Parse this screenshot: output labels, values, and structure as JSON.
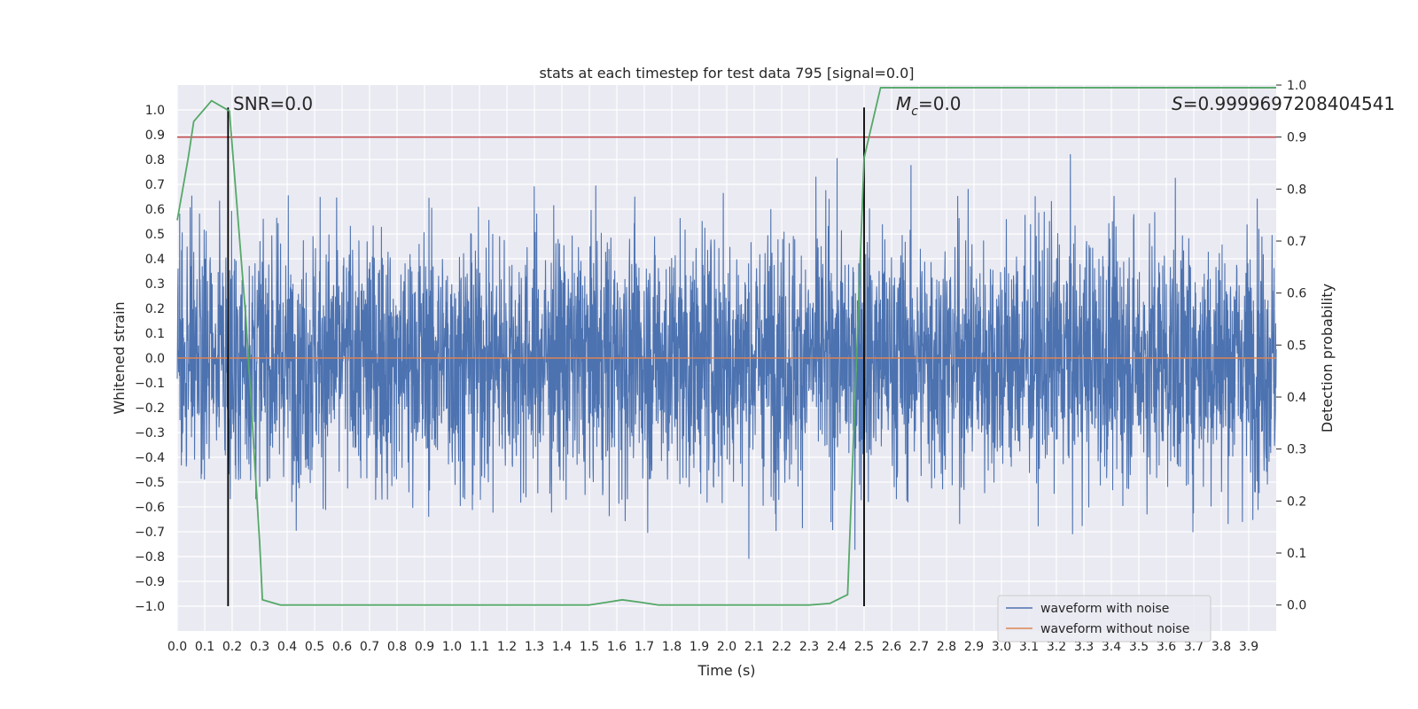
{
  "chart_data": {
    "type": "line",
    "title": "stats at each timestep for test data 795 [signal=0.0]",
    "xlabel": "Time (s)",
    "ylabel": "Whitened strain",
    "y2label": "Detection probability",
    "xlim": [
      0.0,
      4.0
    ],
    "ylim": [
      -1.1,
      1.1
    ],
    "y2lim": [
      -0.05,
      1.0
    ],
    "xticks": [
      "0.0",
      "0.1",
      "0.2",
      "0.3",
      "0.4",
      "0.5",
      "0.6",
      "0.7",
      "0.8",
      "0.9",
      "1.0",
      "1.1",
      "1.2",
      "1.3",
      "1.4",
      "1.5",
      "1.6",
      "1.7",
      "1.8",
      "1.9",
      "2.0",
      "2.1",
      "2.2",
      "2.3",
      "2.4",
      "2.5",
      "2.6",
      "2.7",
      "2.8",
      "2.9",
      "3.0",
      "3.1",
      "3.2",
      "3.3",
      "3.4",
      "3.5",
      "3.6",
      "3.7",
      "3.8",
      "3.9"
    ],
    "yticks": [
      "1.0",
      "0.9",
      "0.8",
      "0.7",
      "0.6",
      "0.5",
      "0.4",
      "0.3",
      "0.2",
      "0.1",
      "0.0",
      "−0.1",
      "−0.2",
      "−0.3",
      "−0.4",
      "−0.5",
      "−0.6",
      "−0.7",
      "−0.8",
      "−0.9",
      "−1.0"
    ],
    "y2ticks": [
      "1.0",
      "0.9",
      "0.8",
      "0.7",
      "0.6",
      "0.5",
      "0.4",
      "0.3",
      "0.2",
      "0.1",
      "0.0"
    ],
    "grid": true,
    "legend_position": "bottom-right",
    "series": [
      {
        "name": "waveform with noise",
        "color": "#4c72b0",
        "kind": "noise",
        "amplitude": 0.3,
        "samples": 4000
      },
      {
        "name": "waveform without noise",
        "color": "#dd8452",
        "values": [
          0.0,
          0.0
        ]
      }
    ],
    "probability": {
      "color": "#55a868",
      "x": [
        0.0,
        0.04,
        0.06,
        0.125,
        0.19,
        0.25,
        0.3,
        0.31,
        0.375,
        0.5,
        1.0,
        1.5,
        1.56,
        1.62,
        1.69,
        1.75,
        2.0,
        2.3,
        2.375,
        2.44,
        2.5,
        2.56,
        3.0,
        3.5,
        4.0
      ],
      "values": [
        0.74,
        0.86,
        0.93,
        0.97,
        0.95,
        0.55,
        0.12,
        0.01,
        0.0,
        0.0,
        0.0,
        0.0,
        0.005,
        0.01,
        0.005,
        0.0,
        0.0,
        0.0,
        0.003,
        0.02,
        0.86,
        0.995,
        0.995,
        0.995,
        0.995
      ]
    },
    "threshold": {
      "value": 0.9,
      "color": "#c44e52"
    },
    "markers": [
      {
        "x": 0.185,
        "label": "SNR=0.0"
      },
      {
        "x": 2.5,
        "label": "Mc=0.0"
      }
    ],
    "annotations": [
      {
        "text": "SNR=0.0",
        "x": 0.2,
        "y": 1.02
      },
      {
        "text": "M",
        "sub": "c",
        "suffix": "=0.0",
        "x": 2.6,
        "y": 1.02
      },
      {
        "text": "S",
        "suffix": "=0.9999697208404541",
        "x": 3.6,
        "y": 1.02
      }
    ]
  }
}
